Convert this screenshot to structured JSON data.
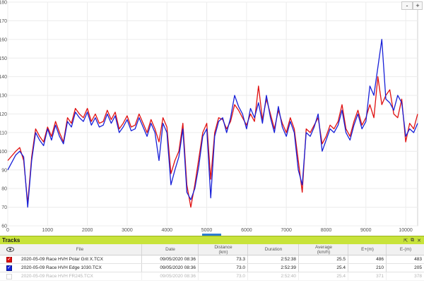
{
  "chart_data": {
    "type": "line",
    "title": "",
    "xlabel": "",
    "ylabel": "",
    "xlim": [
      0,
      10300
    ],
    "ylim": [
      60,
      180
    ],
    "x_ticks": [
      "0",
      "1000",
      "2000",
      "3000",
      "4000",
      "5000",
      "6000",
      "7000",
      "8000",
      "9000",
      "10000"
    ],
    "y_ticks": [
      "60",
      "70",
      "80",
      "90",
      "100",
      "110",
      "120",
      "130",
      "140",
      "150",
      "160",
      "170",
      "180"
    ],
    "grid": true,
    "series": [
      {
        "color": "#e01010",
        "x": [
          0,
          200,
          300,
          400,
          500,
          600,
          700,
          800,
          900,
          1000,
          1100,
          1200,
          1300,
          1400,
          1500,
          1600,
          1700,
          1800,
          1900,
          2000,
          2100,
          2200,
          2300,
          2400,
          2500,
          2600,
          2700,
          2800,
          2900,
          3000,
          3100,
          3200,
          3300,
          3400,
          3500,
          3600,
          3700,
          3800,
          3900,
          4000,
          4100,
          4200,
          4300,
          4400,
          4500,
          4600,
          4700,
          4800,
          4900,
          5000,
          5100,
          5200,
          5300,
          5400,
          5500,
          5600,
          5700,
          5800,
          5900,
          6000,
          6100,
          6200,
          6300,
          6400,
          6500,
          6600,
          6700,
          6800,
          6900,
          7000,
          7100,
          7200,
          7300,
          7400,
          7500,
          7600,
          7700,
          7800,
          7900,
          8000,
          8100,
          8200,
          8300,
          8400,
          8500,
          8600,
          8700,
          8800,
          8900,
          9000,
          9100,
          9200,
          9300,
          9400,
          9500,
          9600,
          9700,
          9800,
          9900,
          10000,
          10100,
          10200,
          10300
        ],
        "y": [
          95,
          100,
          102,
          95,
          72,
          97,
          112,
          108,
          105,
          113,
          108,
          116,
          110,
          105,
          118,
          115,
          123,
          120,
          118,
          123,
          116,
          120,
          115,
          116,
          122,
          117,
          121,
          112,
          115,
          119,
          113,
          114,
          120,
          115,
          110,
          117,
          112,
          105,
          118,
          113,
          88,
          95,
          100,
          115,
          82,
          70,
          82,
          96,
          110,
          115,
          85,
          110,
          118,
          117,
          112,
          116,
          125,
          122,
          118,
          114,
          120,
          116,
          135,
          117,
          128,
          120,
          112,
          122,
          115,
          110,
          118,
          112,
          95,
          78,
          112,
          110,
          114,
          118,
          104,
          108,
          114,
          112,
          116,
          125,
          112,
          108,
          116,
          122,
          114,
          118,
          125,
          118,
          140,
          125,
          130,
          133,
          120,
          118,
          128,
          105,
          115,
          112,
          120
        ]
      },
      {
        "color": "#1820d8",
        "x": [
          0,
          200,
          300,
          400,
          500,
          600,
          700,
          800,
          900,
          1000,
          1100,
          1200,
          1300,
          1400,
          1500,
          1600,
          1700,
          1800,
          1900,
          2000,
          2100,
          2200,
          2300,
          2400,
          2500,
          2600,
          2700,
          2800,
          2900,
          3000,
          3100,
          3200,
          3300,
          3400,
          3500,
          3600,
          3700,
          3800,
          3900,
          4000,
          4100,
          4200,
          4300,
          4400,
          4500,
          4600,
          4700,
          4800,
          4900,
          5000,
          5100,
          5200,
          5300,
          5400,
          5500,
          5600,
          5700,
          5800,
          5900,
          6000,
          6100,
          6200,
          6300,
          6400,
          6500,
          6600,
          6700,
          6800,
          6900,
          7000,
          7100,
          7200,
          7300,
          7400,
          7500,
          7600,
          7700,
          7800,
          7900,
          8000,
          8100,
          8200,
          8300,
          8400,
          8500,
          8600,
          8700,
          8800,
          8900,
          9000,
          9100,
          9200,
          9300,
          9400,
          9500,
          9600,
          9700,
          9800,
          9900,
          10000,
          10100,
          10200,
          10300
        ],
        "y": [
          90,
          98,
          100,
          97,
          70,
          95,
          110,
          106,
          103,
          112,
          106,
          114,
          108,
          104,
          116,
          113,
          121,
          118,
          116,
          121,
          114,
          118,
          113,
          114,
          120,
          115,
          119,
          110,
          113,
          117,
          111,
          112,
          118,
          113,
          108,
          115,
          110,
          95,
          115,
          110,
          82,
          90,
          97,
          112,
          78,
          74,
          80,
          92,
          108,
          112,
          75,
          108,
          116,
          118,
          110,
          118,
          130,
          124,
          120,
          112,
          123,
          118,
          126,
          115,
          130,
          118,
          110,
          124,
          113,
          108,
          116,
          110,
          90,
          82,
          110,
          108,
          113,
          120,
          100,
          106,
          112,
          110,
          114,
          122,
          110,
          106,
          114,
          120,
          112,
          116,
          135,
          130,
          145,
          160,
          128,
          126,
          122,
          130,
          126,
          108,
          112,
          110,
          115
        ]
      }
    ]
  },
  "zoom": {
    "minus": "-",
    "plus": "+"
  },
  "tracks": {
    "title": "Tracks",
    "tools": {
      "a": "⇱",
      "b": "⧉",
      "c": "✕"
    },
    "columns": {
      "file": "File",
      "date": "Date",
      "distance": "Distance",
      "distance_unit": "(km)",
      "duration": "Duration",
      "average": "Average",
      "average_unit": "(km/h)",
      "eplus": "E+(m)",
      "eminus": "E-(m)"
    },
    "rows": [
      {
        "file": "2020-05-09 Race HVH Polar Grit X.TCX",
        "date": "09/05/2020 08:36",
        "distance": "73.3",
        "duration": "2:52:38",
        "average": "25.5",
        "eplus": "486",
        "eminus": "483",
        "color": "#e01010",
        "checked": "✓"
      },
      {
        "file": "2020-05-09 Race HVH Edge 1030.TCX",
        "date": "09/05/2020 08:36",
        "distance": "73.0",
        "duration": "2:52:39",
        "average": "25.4",
        "eplus": "210",
        "eminus": "205",
        "color": "#1020e0",
        "checked": "✓"
      },
      {
        "file": "2020-05-09 Race HVH FR245.TCX",
        "date": "09/05/2020 08:36",
        "distance": "73.0",
        "duration": "2:52:40",
        "average": "25.4",
        "eplus": "371",
        "eminus": "378",
        "color": "#888888",
        "checked": ""
      }
    ]
  }
}
